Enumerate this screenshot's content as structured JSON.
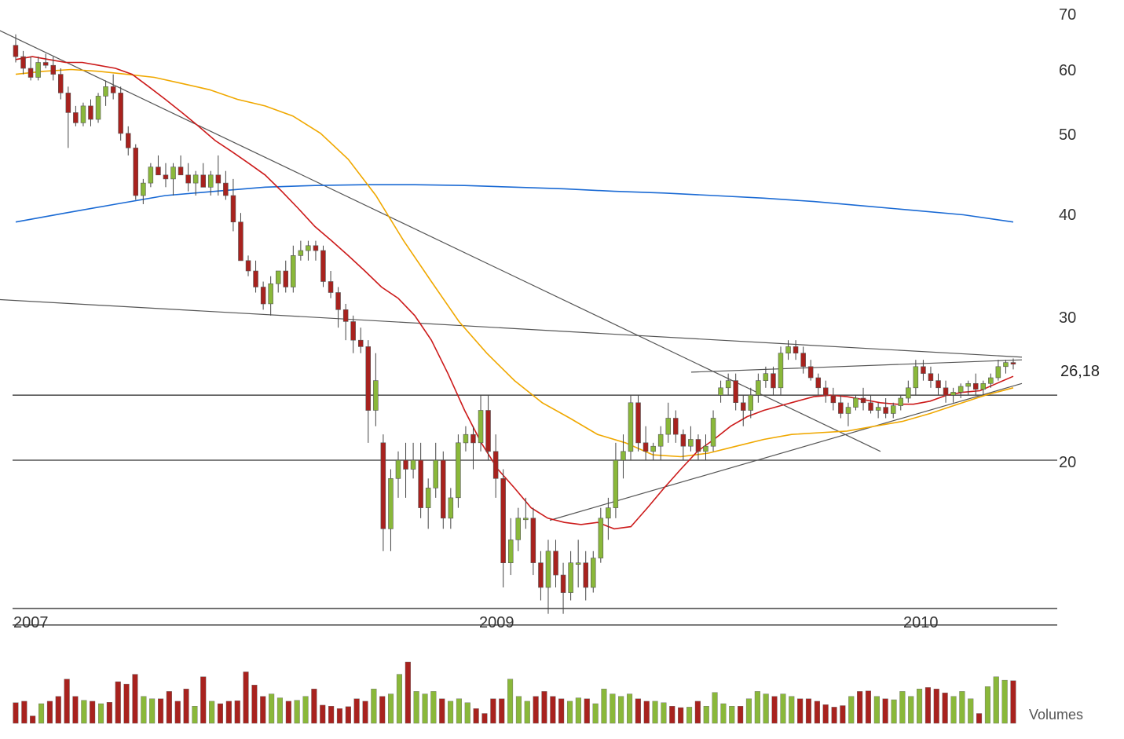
{
  "chart_data": {
    "type": "candlestick",
    "y_scale": "log",
    "ylim": [
      13,
      70
    ],
    "y_ticks": [
      "70",
      "60",
      "50",
      "40",
      "30",
      "20"
    ],
    "x_ticks": [
      "2007",
      "2009",
      "2010"
    ],
    "last_price_label": "26,18",
    "volume_label": "Volumes",
    "colors": {
      "up": "#8ab83a",
      "down": "#a8221e",
      "ma_short": "#cc1a1a",
      "ma_mid": "#f0a800",
      "ma_long": "#1a6ad4",
      "trend": "#555555",
      "level": "#555555"
    },
    "candles": [
      [
        64.0,
        66.0,
        61.0,
        62.0
      ],
      [
        62.0,
        63.0,
        59.0,
        60.0
      ],
      [
        60.0,
        62.0,
        58.0,
        58.5
      ],
      [
        58.5,
        62.0,
        58.0,
        61.0
      ],
      [
        61.0,
        62.5,
        60.0,
        60.5
      ],
      [
        60.5,
        62.0,
        58.0,
        59.0
      ],
      [
        59.0,
        60.0,
        55.0,
        56.0
      ],
      [
        56.0,
        57.0,
        48.0,
        53.0
      ],
      [
        53.0,
        54.0,
        51.0,
        51.5
      ],
      [
        51.5,
        54.5,
        51.0,
        54.0
      ],
      [
        54.0,
        55.0,
        51.0,
        52.0
      ],
      [
        52.0,
        56.0,
        51.5,
        55.5
      ],
      [
        55.5,
        58.0,
        54.0,
        57.0
      ],
      [
        57.0,
        59.0,
        55.0,
        56.0
      ],
      [
        56.0,
        57.0,
        49.0,
        50.0
      ],
      [
        50.0,
        51.0,
        47.0,
        48.0
      ],
      [
        48.0,
        48.5,
        41.5,
        42.0
      ],
      [
        42.0,
        44.0,
        41.0,
        43.5
      ],
      [
        43.5,
        46.0,
        43.0,
        45.5
      ],
      [
        45.5,
        47.0,
        44.5,
        44.5
      ],
      [
        44.5,
        46.0,
        43.0,
        44.0
      ],
      [
        44.0,
        46.0,
        42.0,
        45.5
      ],
      [
        45.5,
        47.0,
        44.5,
        44.5
      ],
      [
        44.5,
        46.0,
        42.5,
        43.5
      ],
      [
        43.5,
        45.0,
        42.0,
        44.5
      ],
      [
        44.5,
        46.0,
        43.0,
        43.0
      ],
      [
        43.0,
        45.0,
        42.0,
        44.5
      ],
      [
        44.5,
        47.0,
        42.0,
        43.5
      ],
      [
        43.5,
        45.0,
        41.5,
        42.0
      ],
      [
        42.0,
        44.0,
        38.0,
        39.0
      ],
      [
        39.0,
        40.0,
        35.0,
        35.0
      ],
      [
        35.0,
        35.5,
        33.5,
        34.0
      ],
      [
        34.0,
        35.0,
        32.0,
        32.5
      ],
      [
        32.5,
        33.0,
        30.5,
        31.0
      ],
      [
        31.0,
        33.5,
        30.0,
        32.8
      ],
      [
        32.8,
        34.0,
        32.0,
        34.0
      ],
      [
        34.0,
        35.0,
        32.0,
        32.5
      ],
      [
        32.5,
        36.5,
        32.0,
        35.5
      ],
      [
        35.5,
        37.0,
        35.0,
        36.0
      ],
      [
        36.0,
        37.0,
        35.0,
        36.5
      ],
      [
        36.5,
        37.0,
        35.0,
        36.0
      ],
      [
        36.0,
        36.5,
        32.5,
        33.0
      ],
      [
        33.0,
        34.0,
        31.5,
        32.0
      ],
      [
        32.0,
        32.5,
        29.0,
        30.5
      ],
      [
        30.5,
        31.0,
        28.0,
        29.5
      ],
      [
        29.5,
        30.0,
        27.0,
        28.0
      ],
      [
        28.0,
        29.0,
        27.0,
        27.5
      ],
      [
        27.5,
        28.0,
        21.0,
        23.0
      ],
      [
        23.0,
        27.0,
        22.0,
        25.0
      ],
      [
        21.0,
        21.5,
        15.5,
        16.5
      ],
      [
        16.5,
        19.5,
        15.5,
        19.0
      ],
      [
        19.0,
        20.5,
        18.0,
        20.0
      ],
      [
        20.0,
        21.0,
        18.0,
        19.5
      ],
      [
        19.5,
        21.0,
        19.0,
        20.0
      ],
      [
        20.0,
        21.0,
        17.0,
        17.5
      ],
      [
        17.5,
        19.0,
        16.5,
        18.5
      ],
      [
        18.5,
        21.0,
        18.0,
        20.0
      ],
      [
        20.0,
        20.5,
        16.5,
        17.0
      ],
      [
        17.0,
        18.5,
        16.5,
        18.0
      ],
      [
        18.0,
        21.5,
        17.5,
        21.0
      ],
      [
        21.0,
        22.0,
        20.5,
        21.5
      ],
      [
        21.5,
        22.0,
        19.5,
        21.0
      ],
      [
        21.0,
        24.0,
        20.5,
        23.0
      ],
      [
        23.0,
        24.0,
        20.0,
        20.5
      ],
      [
        20.5,
        21.5,
        18.0,
        19.0
      ],
      [
        19.0,
        19.5,
        14.0,
        15.0
      ],
      [
        15.0,
        17.0,
        14.5,
        16.0
      ],
      [
        16.0,
        17.5,
        15.5,
        17.0
      ],
      [
        17.0,
        18.0,
        16.5,
        17.0
      ],
      [
        17.0,
        17.5,
        14.5,
        15.0
      ],
      [
        15.0,
        15.5,
        13.5,
        14.0
      ],
      [
        14.0,
        16.0,
        13.0,
        15.5
      ],
      [
        15.5,
        16.0,
        14.0,
        14.5
      ],
      [
        14.5,
        15.0,
        13.0,
        13.8
      ],
      [
        13.8,
        15.5,
        13.5,
        15.0
      ],
      [
        15.0,
        16.0,
        14.0,
        15.0
      ],
      [
        15.0,
        15.5,
        13.5,
        14.0
      ],
      [
        14.0,
        15.5,
        13.8,
        15.2
      ],
      [
        15.2,
        17.5,
        15.0,
        17.0
      ],
      [
        17.0,
        18.0,
        16.0,
        17.5
      ],
      [
        17.5,
        21.0,
        17.0,
        20.0
      ],
      [
        20.0,
        21.5,
        19.0,
        20.5
      ],
      [
        20.5,
        24.0,
        20.0,
        23.5
      ],
      [
        23.5,
        24.0,
        20.5,
        21.0
      ],
      [
        21.0,
        22.0,
        20.0,
        20.5
      ],
      [
        20.5,
        21.0,
        20.0,
        20.8
      ],
      [
        20.8,
        22.0,
        20.0,
        21.5
      ],
      [
        21.5,
        23.5,
        21.0,
        22.5
      ],
      [
        22.5,
        23.0,
        21.0,
        21.5
      ],
      [
        21.5,
        21.8,
        20.0,
        20.8
      ],
      [
        20.8,
        22.0,
        20.5,
        21.2
      ],
      [
        21.2,
        21.5,
        20.0,
        20.5
      ],
      [
        20.5,
        21.5,
        20.0,
        20.8
      ],
      [
        20.8,
        23.0,
        20.5,
        22.5
      ],
      [
        24.0,
        25.0,
        23.5,
        24.5
      ],
      [
        24.5,
        25.5,
        24.0,
        25.0
      ],
      [
        25.0,
        25.5,
        23.0,
        23.5
      ],
      [
        23.5,
        24.0,
        22.0,
        23.0
      ],
      [
        23.0,
        24.5,
        22.5,
        24.0
      ],
      [
        24.0,
        25.5,
        23.5,
        25.0
      ],
      [
        25.0,
        26.0,
        24.5,
        25.5
      ],
      [
        25.5,
        26.0,
        24.0,
        24.5
      ],
      [
        24.5,
        27.5,
        24.0,
        27.0
      ],
      [
        27.0,
        28.0,
        26.5,
        27.5
      ],
      [
        27.5,
        28.0,
        26.5,
        27.0
      ],
      [
        27.0,
        27.5,
        25.5,
        26.0
      ],
      [
        26.0,
        26.5,
        25.0,
        25.2
      ],
      [
        25.2,
        25.5,
        24.0,
        24.5
      ],
      [
        24.5,
        25.0,
        23.5,
        24.0
      ],
      [
        24.0,
        24.5,
        23.0,
        23.5
      ],
      [
        23.5,
        24.0,
        22.5,
        22.8
      ],
      [
        22.8,
        23.5,
        22.0,
        23.2
      ],
      [
        23.2,
        24.0,
        23.0,
        23.8
      ],
      [
        23.8,
        24.5,
        23.0,
        23.5
      ],
      [
        23.5,
        24.0,
        22.8,
        23.0
      ],
      [
        23.0,
        23.5,
        22.5,
        23.2
      ],
      [
        23.2,
        23.8,
        22.5,
        22.8
      ],
      [
        22.8,
        23.5,
        22.5,
        23.3
      ],
      [
        23.3,
        24.0,
        23.0,
        23.8
      ],
      [
        23.8,
        25.0,
        23.5,
        24.5
      ],
      [
        24.5,
        26.5,
        24.0,
        26.0
      ],
      [
        26.0,
        26.5,
        25.0,
        25.5
      ],
      [
        25.5,
        26.0,
        24.5,
        25.0
      ],
      [
        25.0,
        25.5,
        24.0,
        24.5
      ],
      [
        24.5,
        25.0,
        23.5,
        24.0
      ],
      [
        24.0,
        24.5,
        23.5,
        24.2
      ],
      [
        24.2,
        24.8,
        23.8,
        24.6
      ],
      [
        24.6,
        25.0,
        24.0,
        24.8
      ],
      [
        24.8,
        25.5,
        24.0,
        24.4
      ],
      [
        24.4,
        25.0,
        24.0,
        24.8
      ],
      [
        24.8,
        25.5,
        24.5,
        25.2
      ],
      [
        25.2,
        26.5,
        25.0,
        26.0
      ],
      [
        26.0,
        26.5,
        25.5,
        26.3
      ],
      [
        26.3,
        26.6,
        25.8,
        26.18
      ]
    ],
    "ma_short": [
      61.5,
      62.0,
      61.5,
      61.0,
      61.0,
      60.5,
      60.0,
      59.0,
      57.0,
      55.0,
      53.0,
      51.0,
      49.0,
      47.5,
      46.0,
      44.5,
      42.5,
      40.5,
      38.5,
      37.0,
      35.5,
      34.0,
      32.5,
      31.5,
      30.0,
      28.0,
      25.5,
      23.0,
      21.0,
      19.5,
      18.5,
      17.5,
      17.0,
      16.8,
      16.7,
      16.8,
      16.5,
      16.6,
      17.5,
      18.5,
      19.5,
      20.5,
      21.2,
      22.0,
      22.6,
      23.0,
      23.3,
      23.6,
      23.9,
      24.0,
      23.9,
      23.7,
      23.5,
      23.4,
      23.4,
      23.6,
      24.0,
      24.2,
      24.3,
      24.8,
      25.3
    ],
    "ma_mid": [
      59.0,
      59.5,
      59.8,
      59.5,
      59.0,
      58.5,
      57.5,
      56.5,
      55.0,
      54.0,
      52.5,
      50.0,
      46.5,
      42.0,
      37.0,
      33.0,
      29.5,
      27.0,
      25.0,
      23.5,
      22.5,
      21.5,
      21.0,
      20.3,
      20.2,
      20.4,
      20.8,
      21.2,
      21.5,
      21.6,
      21.7,
      22.0,
      22.3,
      22.8,
      23.4,
      24.0,
      24.5
    ],
    "ma_long": [
      39.0,
      40.0,
      41.0,
      42.0,
      42.5,
      43.0,
      43.2,
      43.3,
      43.3,
      43.2,
      43.0,
      42.8,
      42.5,
      42.3,
      42.0,
      41.7,
      41.3,
      40.8,
      40.3,
      39.8,
      39.0
    ],
    "trendlines": [
      {
        "from": [
          "2006-11",
          69.0
        ],
        "to": [
          "2009-12",
          20.5
        ]
      },
      {
        "from": [
          "2006-11",
          31.5
        ],
        "to": [
          "2010-04",
          26.7
        ]
      },
      {
        "from": [
          "2009-03",
          16.9
        ],
        "to": [
          "2010-04",
          24.8
        ]
      },
      {
        "from": [
          "2009-07",
          25.6
        ],
        "to": [
          "2010-04",
          26.5
        ]
      }
    ],
    "levels": [
      24.0,
      20.0,
      13.2,
      12.6
    ],
    "volumes": [
      4.2,
      4.5,
      1.5,
      4.0,
      4.5,
      5.5,
      9.0,
      5.5,
      4.7,
      4.5,
      4.0,
      4.3,
      8.5,
      8.0,
      10.0,
      5.5,
      5.0,
      5.0,
      6.5,
      4.5,
      7.0,
      3.5,
      9.5,
      4.5,
      4.0,
      4.5,
      4.6,
      10.5,
      7.8,
      5.5,
      6.0,
      5.2,
      4.5,
      4.7,
      5.5,
      7.0,
      3.7,
      3.5,
      3.0,
      3.4,
      5.0,
      4.5,
      7.0,
      5.5,
      6.0,
      10.0,
      12.5,
      6.5,
      6.0,
      6.5,
      5.0,
      4.5,
      5.0,
      4.2,
      3.0,
      2.0,
      5.0,
      5.0,
      9.0,
      5.5,
      4.5,
      5.5,
      6.5,
      5.5,
      5.0,
      4.5,
      5.2,
      5.0,
      4.0,
      7.0,
      6.0,
      5.5,
      6.0,
      5.0,
      4.5,
      4.5,
      4.2,
      3.5,
      3.2,
      3.3,
      4.5,
      3.5,
      6.3,
      4.0,
      3.5,
      3.5,
      5.0,
      6.5,
      6.0,
      5.5,
      6.0,
      5.5,
      5.0,
      5.0,
      4.5,
      3.8,
      3.3,
      3.6,
      5.5,
      6.5,
      6.6,
      5.5,
      5.0,
      4.8,
      6.5,
      5.5,
      7.0,
      7.3,
      7.0,
      6.2,
      5.5,
      6.5,
      5.0,
      2.0,
      7.5,
      9.5,
      8.8,
      8.7
    ]
  }
}
